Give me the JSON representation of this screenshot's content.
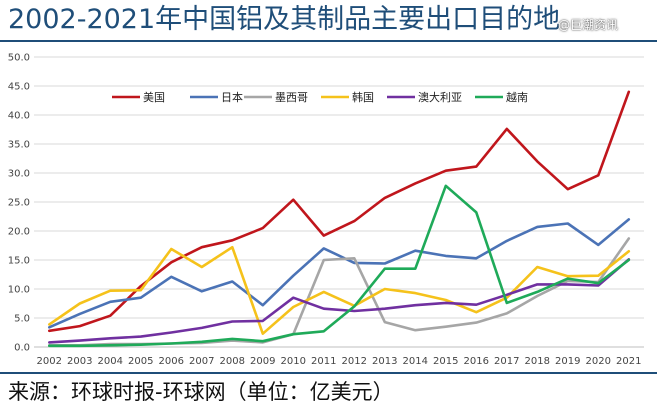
{
  "header": {
    "title": "2002-2021年中国铝及其制品主要出口目的地"
  },
  "footer": {
    "source": "来源：环球时报-环球网（单位：亿美元）"
  },
  "watermark": {
    "text": "@巨潮资讯"
  },
  "chart_data": {
    "type": "line",
    "title": "2002-2021年中国铝及其制品主要出口目的地",
    "xlabel": "",
    "ylabel": "",
    "ylim": [
      0,
      50
    ],
    "yticks": [
      "0.0",
      "5.0",
      "10.0",
      "15.0",
      "20.0",
      "25.0",
      "30.0",
      "35.0",
      "40.0",
      "45.0",
      "50.0"
    ],
    "grid": true,
    "legend_position": "top-center",
    "categories": [
      "2002",
      "2003",
      "2004",
      "2005",
      "2006",
      "2007",
      "2008",
      "2009",
      "2010",
      "2011",
      "2012",
      "2013",
      "2014",
      "2015",
      "2016",
      "2017",
      "2018",
      "2019",
      "2020",
      "2021"
    ],
    "series": [
      {
        "name": "美国",
        "color": "#c0161c",
        "values": [
          2.8,
          3.6,
          5.4,
          10.5,
          14.6,
          17.2,
          18.4,
          20.5,
          25.4,
          19.2,
          21.7,
          25.7,
          28.2,
          30.4,
          31.1,
          37.6,
          32.0,
          27.2,
          29.6,
          44.0
        ]
      },
      {
        "name": "日本",
        "color": "#4b73b6",
        "values": [
          3.4,
          5.7,
          7.8,
          8.5,
          12.1,
          9.6,
          11.3,
          7.2,
          12.3,
          17.0,
          14.5,
          14.4,
          16.6,
          15.7,
          15.3,
          18.3,
          20.7,
          21.3,
          17.6,
          22.0
        ]
      },
      {
        "name": "墨西哥",
        "color": "#a6a6a6",
        "values": [
          0.3,
          0.3,
          0.5,
          0.5,
          0.6,
          0.7,
          1.1,
          0.8,
          2.2,
          15.0,
          15.3,
          4.3,
          2.9,
          3.5,
          4.2,
          5.8,
          8.8,
          11.4,
          11.2,
          18.7
        ]
      },
      {
        "name": "韩国",
        "color": "#f5c21b",
        "values": [
          3.9,
          7.5,
          9.7,
          9.8,
          16.9,
          13.8,
          17.2,
          2.3,
          6.9,
          9.5,
          7.1,
          10.0,
          9.3,
          8.1,
          6.0,
          8.5,
          13.8,
          12.2,
          12.3,
          16.5
        ]
      },
      {
        "name": "澳大利亚",
        "color": "#7030a0",
        "values": [
          0.8,
          1.1,
          1.5,
          1.8,
          2.5,
          3.3,
          4.4,
          4.5,
          8.5,
          6.6,
          6.2,
          6.6,
          7.2,
          7.6,
          7.3,
          9.0,
          10.8,
          10.8,
          10.6,
          15.1
        ]
      },
      {
        "name": "越南",
        "color": "#1faa59",
        "values": [
          0.2,
          0.2,
          0.3,
          0.4,
          0.6,
          0.9,
          1.4,
          1.0,
          2.2,
          2.7,
          7.0,
          13.5,
          13.5,
          27.8,
          23.2,
          7.6,
          9.5,
          11.8,
          11.0,
          15.0
        ]
      }
    ]
  }
}
